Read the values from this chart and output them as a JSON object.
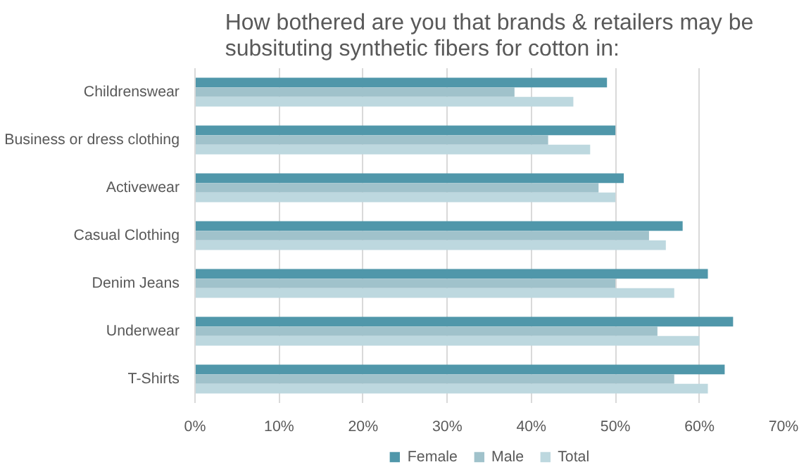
{
  "chart_data": {
    "type": "bar",
    "orientation": "horizontal",
    "title": "How bothered are you that brands & retailers may be subsituting synthetic fibers for cotton in:",
    "categories": [
      "Childrenswear",
      "Business or dress clothing",
      "Activewear",
      "Casual Clothing",
      "Denim Jeans",
      "Underwear",
      "T-Shirts"
    ],
    "series": [
      {
        "name": "Female",
        "color": "#5097aa",
        "values": [
          49,
          50,
          51,
          58,
          61,
          64,
          63
        ]
      },
      {
        "name": "Male",
        "color": "#a0c2cb",
        "values": [
          38,
          42,
          48,
          54,
          50,
          55,
          57
        ]
      },
      {
        "name": "Total",
        "color": "#bdd8df",
        "values": [
          45,
          47,
          50,
          56,
          57,
          60,
          61
        ]
      }
    ],
    "xlim": [
      0,
      70
    ],
    "xticks": [
      {
        "value": 0,
        "label": "0%"
      },
      {
        "value": 10,
        "label": "10%"
      },
      {
        "value": 20,
        "label": "20%"
      },
      {
        "value": 30,
        "label": "30%"
      },
      {
        "value": 40,
        "label": "40%"
      },
      {
        "value": 50,
        "label": "50%"
      },
      {
        "value": 60,
        "label": "60%"
      },
      {
        "value": 70,
        "label": "70%"
      }
    ],
    "grid": "x",
    "legend": "bottom"
  }
}
